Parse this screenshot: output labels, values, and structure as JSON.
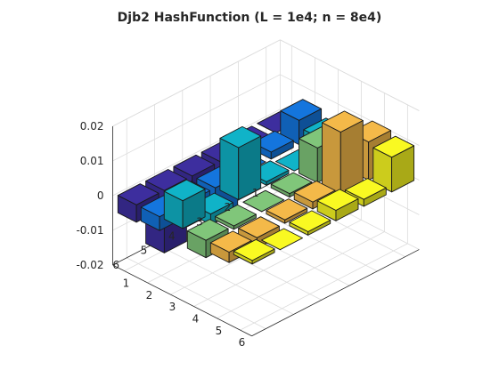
{
  "chart_data": {
    "type": "bar3",
    "title": "Djb2 HashFunction (L = 1e4; n = 8e4)",
    "xlabel": "",
    "ylabel": "",
    "zlabel": "",
    "x_ticks": [
      "1",
      "2",
      "3",
      "4",
      "5",
      "6"
    ],
    "y_ticks": [
      "1",
      "2",
      "3",
      "4",
      "5",
      "6"
    ],
    "z_ticks": [
      "0.02",
      "0.01",
      "0",
      "-0.01",
      "-0.02"
    ],
    "zlim": [
      -0.02,
      0.02
    ],
    "grid": true,
    "colormap": "parula",
    "colors": {
      "row1": "#3d2e9e",
      "row2": "#1475dd",
      "row3": "#10b3c8",
      "row4": "#80c67a",
      "row5": "#f4b949",
      "row6": "#f9f922"
    },
    "values": [
      [
        0.0,
        -0.002,
        -0.006,
        -0.007,
        -0.018,
        -0.005
      ],
      [
        0.007,
        0.002,
        0.0,
        -0.01,
        -0.007,
        -0.004
      ],
      [
        0.005,
        0.0,
        0.001,
        0.015,
        -0.003,
        0.008
      ],
      [
        0.003,
        0.01,
        0.001,
        0.0,
        -0.001,
        -0.005
      ],
      [
        0.011,
        0.018,
        0.002,
        0.001,
        -0.003,
        -0.003
      ],
      [
        0.01,
        0.002,
        0.003,
        0.001,
        0.0,
        0.001
      ]
    ]
  }
}
